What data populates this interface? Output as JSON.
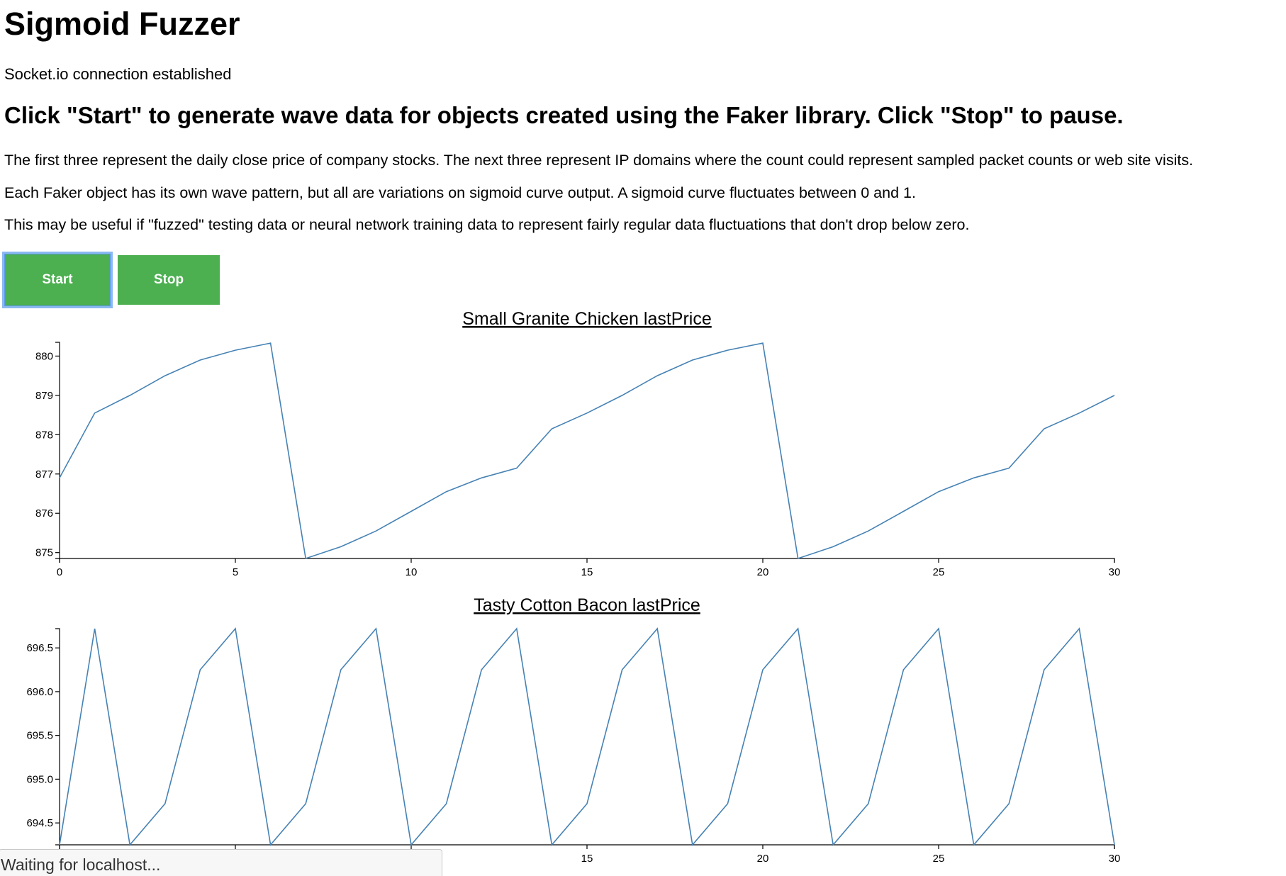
{
  "page": {
    "title": "Sigmoid Fuzzer",
    "status": "Socket.io connection established",
    "subtitle": "Click \"Start\" to generate wave data for objects created using the Faker library. Click \"Stop\" to pause.",
    "paragraphs": [
      "The first three represent the daily close price of company stocks. The next three represent IP domains where the count could represent sampled packet counts or web site visits.",
      "Each Faker object has its own wave pattern, but all are variations on sigmoid curve output. A sigmoid curve fluctuates between 0 and 1.",
      "This may be useful if \"fuzzed\" testing data or neural network training data to represent fairly regular data fluctuations that don't drop below zero."
    ]
  },
  "controls": {
    "start_label": "Start",
    "stop_label": "Stop",
    "button_color": "#4caf50"
  },
  "browser_status": "Waiting for localhost...",
  "chart_data": [
    {
      "type": "line",
      "title": "Small Granite Chicken lastPrice",
      "xlim": [
        0,
        30
      ],
      "ylim": [
        874.85,
        880.35
      ],
      "x_ticks": [
        0,
        5,
        10,
        15,
        20,
        25,
        30
      ],
      "y_ticks": [
        875,
        876,
        877,
        878,
        879,
        880
      ],
      "y_tick_labels": [
        "875",
        "876",
        "877",
        "878",
        "879",
        "880"
      ],
      "line_color": "#4682b4",
      "x": [
        0,
        1,
        2,
        3,
        4,
        5,
        6,
        7,
        8,
        9,
        10,
        11,
        12,
        13,
        14,
        15,
        16,
        17,
        18,
        19,
        20,
        21,
        22,
        23,
        24,
        25,
        26,
        27,
        28,
        29,
        30
      ],
      "values": [
        876.9,
        878.55,
        879.0,
        879.5,
        879.9,
        880.15,
        880.33,
        874.85,
        875.15,
        875.55,
        876.05,
        876.55,
        876.9,
        877.15,
        878.15,
        878.55,
        879.0,
        879.5,
        879.9,
        880.15,
        880.33,
        874.85,
        875.15,
        875.55,
        876.05,
        876.55,
        876.9,
        877.15,
        878.15,
        878.55,
        879.0
      ]
    },
    {
      "type": "line",
      "title": "Tasty Cotton Bacon lastPrice",
      "xlim": [
        0,
        30
      ],
      "ylim": [
        694.25,
        696.72
      ],
      "x_ticks": [
        0,
        5,
        10,
        15,
        20,
        25,
        30
      ],
      "x_tick_labels": [
        "",
        "",
        "",
        "15",
        "20",
        "25",
        "30"
      ],
      "y_ticks": [
        694.5,
        695.0,
        695.5,
        696.0,
        696.5
      ],
      "y_tick_labels": [
        "694.5",
        "695.0",
        "695.5",
        "696.0",
        "696.5"
      ],
      "line_color": "#4682b4",
      "x": [
        0,
        1,
        2,
        3,
        4,
        5,
        6,
        7,
        8,
        9,
        10,
        11,
        12,
        13,
        14,
        15,
        16,
        17,
        18,
        19,
        20,
        21,
        22,
        23,
        24,
        25,
        26,
        27,
        28,
        29,
        30
      ],
      "values": [
        694.25,
        696.72,
        694.25,
        694.72,
        696.25,
        696.72,
        694.25,
        694.72,
        696.25,
        696.72,
        694.25,
        694.72,
        696.25,
        696.72,
        694.25,
        694.72,
        696.25,
        696.72,
        694.25,
        694.72,
        696.25,
        696.72,
        694.25,
        694.72,
        696.25,
        696.72,
        694.25,
        694.72,
        696.25,
        696.72,
        694.25
      ]
    }
  ]
}
